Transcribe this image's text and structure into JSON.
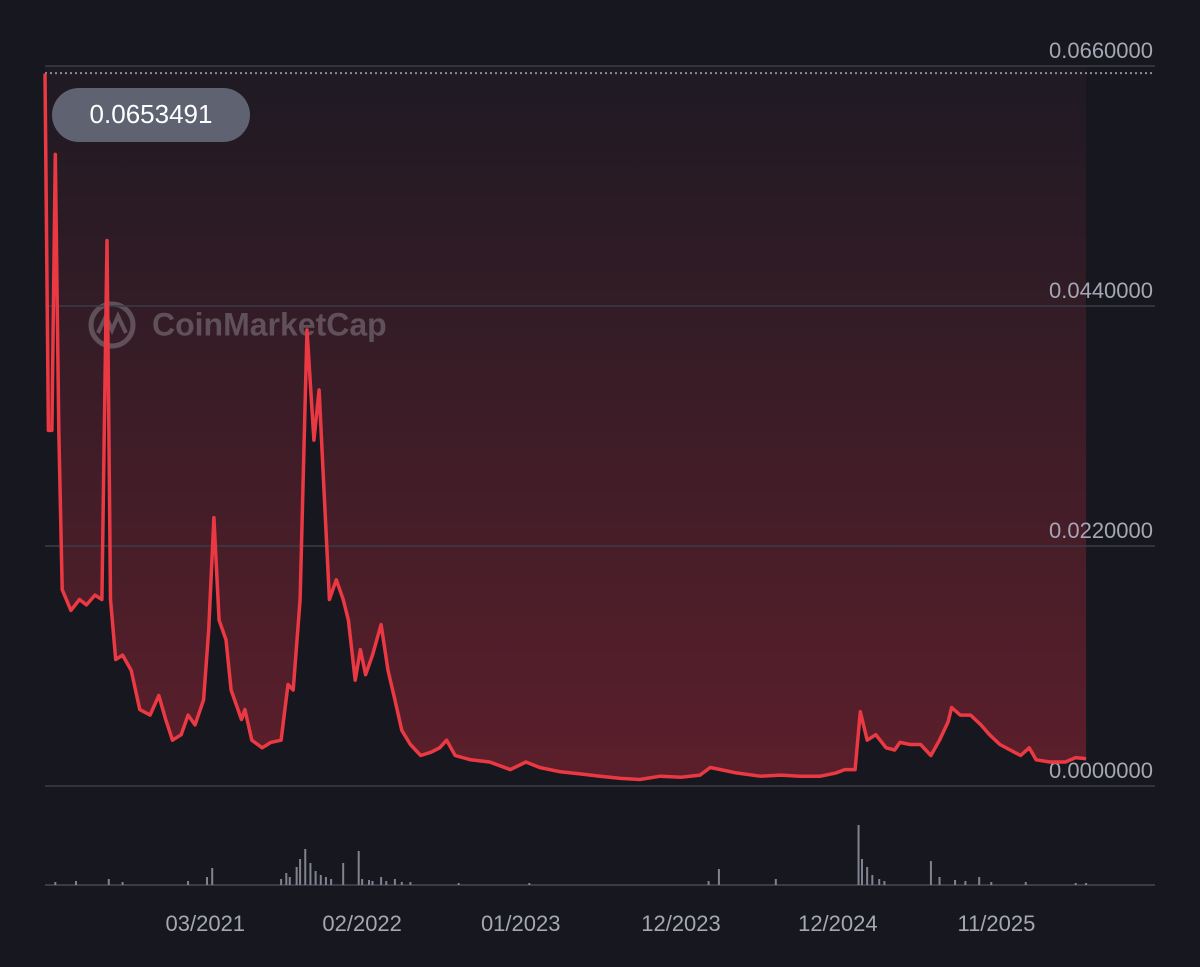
{
  "chart_data": {
    "type": "line",
    "watermark": "CoinMarketCap",
    "max_value": 0.0653491,
    "x": [
      2020.24,
      2020.26,
      2020.28,
      2020.3,
      2020.32,
      2020.34,
      2020.39,
      2020.44,
      2020.48,
      2020.53,
      2020.57,
      2020.6,
      2020.62,
      2020.65,
      2020.69,
      2020.74,
      2020.79,
      2020.85,
      2020.9,
      2020.94,
      2020.98,
      2021.03,
      2021.07,
      2021.11,
      2021.16,
      2021.19,
      2021.22,
      2021.25,
      2021.29,
      2021.32,
      2021.38,
      2021.4,
      2021.44,
      2021.5,
      2021.55,
      2021.61,
      2021.65,
      2021.68,
      2021.72,
      2021.76,
      2021.8,
      2021.83,
      2021.85,
      2021.89,
      2021.93,
      2021.97,
      2022.0,
      2022.04,
      2022.07,
      2022.1,
      2022.14,
      2022.19,
      2022.23,
      2022.27,
      2022.31,
      2022.36,
      2022.42,
      2022.48,
      2022.53,
      2022.57,
      2022.62,
      2022.71,
      2022.82,
      2022.94,
      2023.03,
      2023.11,
      2023.23,
      2023.35,
      2023.46,
      2023.58,
      2023.69,
      2023.81,
      2023.93,
      2024.04,
      2024.1,
      2024.16,
      2024.25,
      2024.39,
      2024.51,
      2024.62,
      2024.74,
      2024.83,
      2024.88,
      2024.94,
      2024.97,
      2025.01,
      2025.06,
      2025.12,
      2025.17,
      2025.2,
      2025.26,
      2025.32,
      2025.38,
      2025.43,
      2025.48,
      2025.5,
      2025.55,
      2025.61,
      2025.67,
      2025.72,
      2025.78,
      2025.84,
      2025.9,
      2025.95,
      2025.99,
      2026.07,
      2026.16,
      2026.22,
      2026.28
    ],
    "series": [
      {
        "color": "#ea3943",
        "values": [
          0.0653,
          0.0326,
          0.0326,
          0.0579,
          0.0326,
          0.018,
          0.0161,
          0.0171,
          0.0166,
          0.0175,
          0.0171,
          0.05,
          0.0171,
          0.0116,
          0.012,
          0.0106,
          0.007,
          0.0065,
          0.0083,
          0.0061,
          0.0042,
          0.0047,
          0.0065,
          0.0056,
          0.0079,
          0.0143,
          0.0246,
          0.0152,
          0.0134,
          0.0088,
          0.0061,
          0.007,
          0.0042,
          0.0035,
          0.004,
          0.0042,
          0.0093,
          0.0088,
          0.0171,
          0.0418,
          0.0317,
          0.0363,
          0.0299,
          0.0171,
          0.0189,
          0.0171,
          0.0152,
          0.0097,
          0.0125,
          0.0102,
          0.012,
          0.0148,
          0.0106,
          0.0079,
          0.0051,
          0.0038,
          0.0028,
          0.0031,
          0.0035,
          0.0042,
          0.0028,
          0.0024,
          0.0022,
          0.0015,
          0.0022,
          0.0017,
          0.0013,
          0.0011,
          0.0009,
          0.0007,
          0.0006,
          0.0009,
          0.0008,
          0.001,
          0.0017,
          0.0015,
          0.0012,
          0.0009,
          0.001,
          0.0009,
          0.0009,
          0.0012,
          0.0015,
          0.0015,
          0.0068,
          0.0042,
          0.0047,
          0.0035,
          0.0033,
          0.004,
          0.0038,
          0.0038,
          0.0028,
          0.0042,
          0.0059,
          0.0072,
          0.0065,
          0.0065,
          0.0056,
          0.0047,
          0.0038,
          0.0033,
          0.0028,
          0.0035,
          0.0024,
          0.0022,
          0.0022,
          0.0026,
          0.0025
        ]
      }
    ],
    "xlim": [
      2020.24,
      2026.68
    ],
    "xticks": [
      {
        "value": 2021.17,
        "label": "03/2021"
      },
      {
        "value": 2022.08,
        "label": "02/2022"
      },
      {
        "value": 2023.0,
        "label": "01/2023"
      },
      {
        "value": 2023.93,
        "label": "12/2023"
      },
      {
        "value": 2024.84,
        "label": "12/2024"
      },
      {
        "value": 2025.76,
        "label": "11/2025"
      }
    ],
    "ylim": [
      0,
      0.066
    ],
    "yticks": [
      {
        "value": 0,
        "label": "0.0000000"
      },
      {
        "value": 0.022,
        "label": "0.0220000"
      },
      {
        "value": 0.044,
        "label": "0.0440000"
      },
      {
        "value": 0.066,
        "label": "0.0660000"
      }
    ],
    "grid": true,
    "volume": {
      "color": "#80838f",
      "ylim": [
        0,
        62
      ],
      "x": [
        2020.3,
        2020.42,
        2020.61,
        2020.69,
        2021.07,
        2021.18,
        2021.21,
        2021.61,
        2021.64,
        2021.66,
        2021.7,
        2021.72,
        2021.75,
        2021.78,
        2021.81,
        2021.84,
        2021.87,
        2021.9,
        2021.97,
        2022.06,
        2022.08,
        2022.12,
        2022.14,
        2022.19,
        2022.22,
        2022.27,
        2022.31,
        2022.36,
        2022.64,
        2023.05,
        2024.09,
        2024.15,
        2024.48,
        2024.96,
        2024.98,
        2025.01,
        2025.04,
        2025.08,
        2025.11,
        2025.38,
        2025.43,
        2025.52,
        2025.58,
        2025.66,
        2025.73,
        2025.93,
        2026.22,
        2026.28
      ],
      "values": [
        3,
        4,
        6,
        3,
        4,
        8,
        17,
        6,
        12,
        8,
        18,
        26,
        36,
        22,
        14,
        10,
        8,
        6,
        22,
        34,
        6,
        5,
        4,
        8,
        4,
        6,
        3,
        3,
        2,
        2,
        4,
        16,
        6,
        60,
        26,
        18,
        10,
        6,
        4,
        24,
        8,
        5,
        4,
        8,
        3,
        3,
        2,
        2
      ]
    }
  }
}
